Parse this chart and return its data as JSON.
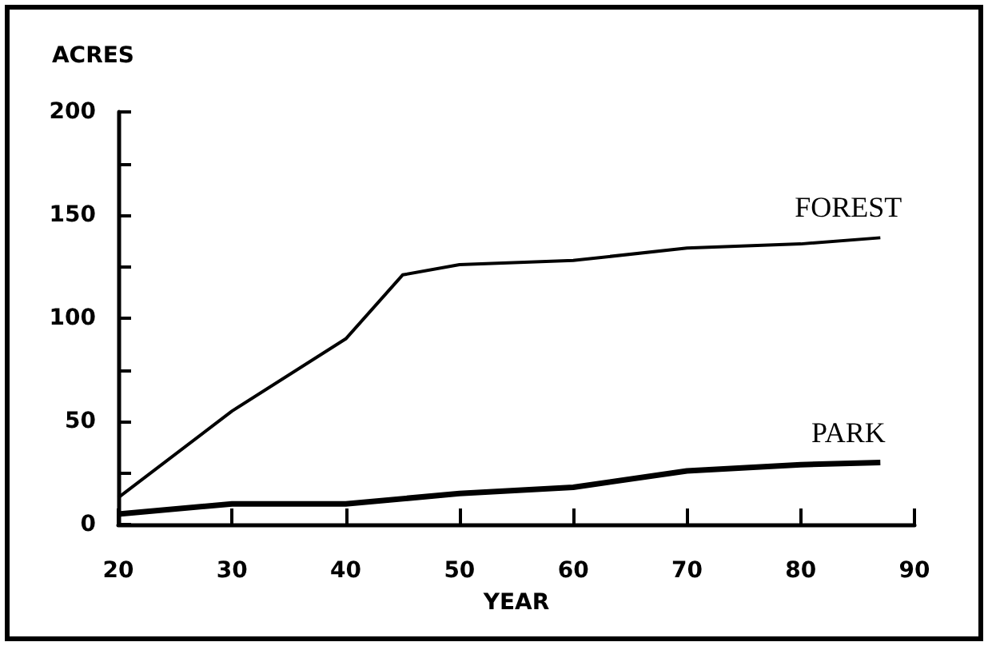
{
  "chart_data": {
    "type": "line",
    "xlabel": "YEAR",
    "ylabel": "ACRES",
    "x": [
      20,
      30,
      40,
      45,
      50,
      60,
      70,
      80,
      87
    ],
    "series": [
      {
        "name": "FOREST",
        "color": "#000000",
        "values": [
          13,
          55,
          90,
          121,
          126,
          128,
          134,
          136,
          139
        ]
      },
      {
        "name": "PARK",
        "color": "#000000",
        "x": [
          20,
          30,
          40,
          50,
          60,
          70,
          80,
          87
        ],
        "values": [
          5,
          10,
          10,
          15,
          18,
          26,
          29,
          30
        ]
      }
    ],
    "xlim": [
      20,
      90
    ],
    "xticks": [
      20,
      30,
      40,
      50,
      60,
      70,
      80,
      90
    ],
    "ylim": [
      0,
      200
    ],
    "yticks": [
      0,
      {
        "value": 25,
        "label": null
      },
      50,
      {
        "value": 75,
        "label": null
      },
      100,
      {
        "value": 125,
        "label": null
      },
      150,
      {
        "value": 175,
        "label": null
      },
      200
    ],
    "grid": false,
    "legend": false,
    "marker": "none",
    "line_style": "solid"
  }
}
